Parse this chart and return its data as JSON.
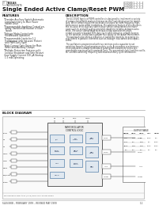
{
  "bg_color": "#ffffff",
  "title": "Single Ended Active Clamp/Reset PWM",
  "part_numbers": [
    "UCC1580-1,-2,-3,-4",
    "UCC2580-1,-2,-3,-4",
    "UCC3580-1,-2,-3,-4"
  ],
  "features_title": "FEATURES",
  "description_title": "DESCRIPTION",
  "block_diagram_title": "BLOCK DIAGRAM",
  "footer_text": "SLUS390B – FEBRUARY 1999 – REVISED MAY 1999",
  "features": [
    "Provides Auxiliary Switch Automatic\nComplementary to Main Power\nSwitch Drive",
    "Programmable deadtime Control en-\nabling Transition Activation of Each\nSwitch",
    "Voltage Mode Control with\nFeedforward Operation",
    "Programmable Limits for 1:1\nTransformer with Saturate Protect\nand PWM Duty Span",
    "High-Current Gate Driver for Main\nReset and Auxiliary Clamps",
    "Multiple Protection Features with\nLockout Shutdown and Safe Restart",
    "Low Supply Current 100 μA Startup,\n1.5 mA Operating"
  ],
  "desc_lines": [
    "The UCC3580 family of PWM controllers is designed to implement a variety",
    "of active clamp/Reset and synchronous rectifier switching converter topolo-",
    "gies. While containing all the necessary functions for fixed frequency high-",
    "performance pulse width modulation, the additional feature of this design is",
    "the inclusion of an auxiliary switch driver which complements the main",
    "power switch, and with a programmable deadtime to delay between activ-",
    "ation. The active clamp/Reset technique allows operation of single-",
    "ended converters beyond 50% duty cycle while reducing voltage stresses",
    "on the switches, and allows a greater flux swing for the power transformer.",
    "This approach also offers a reduction in switching losses by recovering en-",
    "ergy stored in parasitic elements such as leakage inductances and capaci-",
    "tances.",
    "",
    "The oscillator is programmed with two resistors and a capacitor to set",
    "switching frequency and maximum duty cycle. A secondary synchronous",
    "clock provides a voltage feedforward pulse width modulation, and a pro-",
    "grammable maximum with sawtooth limit. The generated clock from the oscilla-",
    "tor controls switching frequency and maximum duty cycle information."
  ],
  "left_pins": [
    "EAIN",
    "FB",
    "CS",
    "SYNC",
    "GND",
    "VREF",
    "SS/DISB",
    "RAMP"
  ],
  "right_pins": [
    "OUT1",
    "OUT2",
    "AUX",
    "OUTB"
  ],
  "top_pins": [
    "RT",
    "CT",
    "VDD",
    "SYNC"
  ],
  "footnote": "Pin numbers refer to D (L-16) and SOIC-16 packages"
}
